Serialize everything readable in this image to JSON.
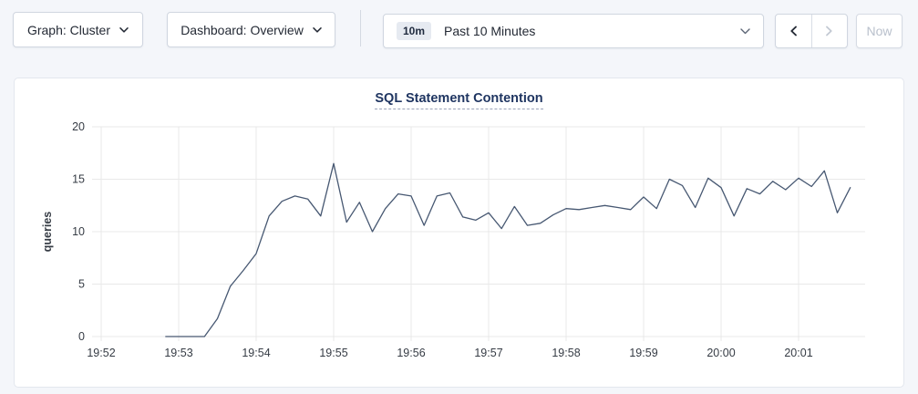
{
  "toolbar": {
    "graph_dropdown": {
      "label": "Graph: Cluster",
      "icon": "chevron-down"
    },
    "dashboard_dropdown": {
      "label": "Dashboard: Overview",
      "icon": "chevron-down"
    },
    "time_selector": {
      "badge": "10m",
      "label": "Past 10 Minutes",
      "icon": "chevron-down"
    },
    "prev_button": {
      "icon": "chevron-left",
      "enabled": true
    },
    "next_button": {
      "icon": "chevron-right",
      "enabled": false
    },
    "now_button": {
      "label": "Now",
      "enabled": false
    }
  },
  "chart": {
    "title": "SQL Statement Contention"
  },
  "chart_data": {
    "type": "line",
    "title": "SQL Statement Contention",
    "xlabel": "",
    "ylabel": "queries",
    "ylim": [
      0,
      20
    ],
    "y_ticks": [
      0,
      5,
      10,
      15,
      20
    ],
    "x_ticks": [
      "19:52",
      "19:53",
      "19:54",
      "19:55",
      "19:56",
      "19:57",
      "19:58",
      "19:59",
      "20:00",
      "20:01"
    ],
    "grid": true,
    "legend_position": "none",
    "colors": {
      "line": "#475872",
      "grid": "#e9e9e9",
      "axis_text": "#363c45",
      "title": "#1f3561"
    },
    "series": [
      {
        "name": "SQL Statement Contention",
        "points": [
          [
            "19:52:50",
            0
          ],
          [
            "19:53:00",
            0
          ],
          [
            "19:53:10",
            0
          ],
          [
            "19:53:20",
            0
          ],
          [
            "19:53:30",
            1.7
          ],
          [
            "19:53:40",
            4.8
          ],
          [
            "19:53:50",
            6.3
          ],
          [
            "19:54:00",
            7.9
          ],
          [
            "19:54:10",
            11.5
          ],
          [
            "19:54:20",
            12.9
          ],
          [
            "19:54:30",
            13.4
          ],
          [
            "19:54:40",
            13.1
          ],
          [
            "19:54:50",
            11.5
          ],
          [
            "19:55:00",
            16.5
          ],
          [
            "19:55:10",
            10.9
          ],
          [
            "19:55:20",
            12.8
          ],
          [
            "19:55:30",
            10.0
          ],
          [
            "19:55:40",
            12.2
          ],
          [
            "19:55:50",
            13.6
          ],
          [
            "19:56:00",
            13.4
          ],
          [
            "19:56:10",
            10.6
          ],
          [
            "19:56:20",
            13.4
          ],
          [
            "19:56:30",
            13.7
          ],
          [
            "19:56:40",
            11.4
          ],
          [
            "19:56:50",
            11.1
          ],
          [
            "19:57:00",
            11.8
          ],
          [
            "19:57:10",
            10.3
          ],
          [
            "19:57:20",
            12.4
          ],
          [
            "19:57:30",
            10.6
          ],
          [
            "19:57:40",
            10.8
          ],
          [
            "19:57:50",
            11.6
          ],
          [
            "19:58:00",
            12.2
          ],
          [
            "19:58:10",
            12.1
          ],
          [
            "19:58:20",
            12.3
          ],
          [
            "19:58:30",
            12.5
          ],
          [
            "19:58:40",
            12.3
          ],
          [
            "19:58:50",
            12.1
          ],
          [
            "19:59:00",
            13.3
          ],
          [
            "19:59:10",
            12.2
          ],
          [
            "19:59:20",
            15.0
          ],
          [
            "19:59:30",
            14.4
          ],
          [
            "19:59:40",
            12.3
          ],
          [
            "19:59:50",
            15.1
          ],
          [
            "20:00:00",
            14.2
          ],
          [
            "20:00:10",
            11.5
          ],
          [
            "20:00:20",
            14.1
          ],
          [
            "20:00:30",
            13.6
          ],
          [
            "20:00:40",
            14.8
          ],
          [
            "20:00:50",
            14.0
          ],
          [
            "20:01:00",
            15.1
          ],
          [
            "20:01:10",
            14.3
          ],
          [
            "20:01:20",
            15.8
          ],
          [
            "20:01:30",
            11.8
          ],
          [
            "20:01:40",
            14.2
          ]
        ]
      }
    ]
  }
}
